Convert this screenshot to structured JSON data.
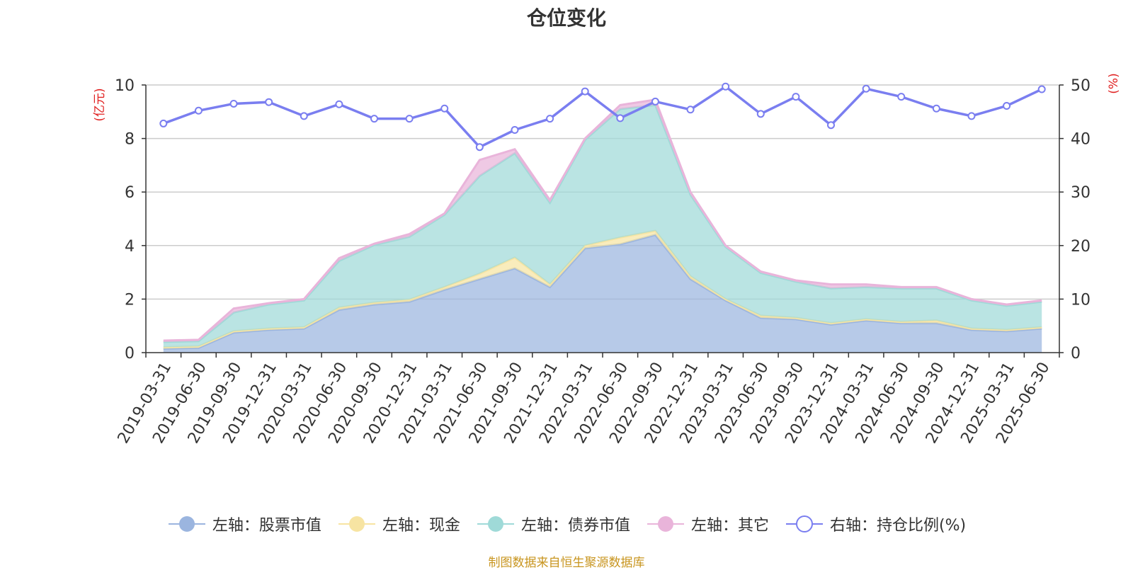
{
  "chart_data": {
    "type": "area",
    "title": "仓位变化",
    "x": [
      "2019-03-31",
      "2019-06-30",
      "2019-09-30",
      "2019-12-31",
      "2020-03-31",
      "2020-06-30",
      "2020-09-30",
      "2020-12-31",
      "2021-03-31",
      "2021-06-30",
      "2021-09-30",
      "2021-12-31",
      "2022-03-31",
      "2022-06-30",
      "2022-09-30",
      "2022-12-31",
      "2023-03-31",
      "2023-06-30",
      "2023-09-30",
      "2023-12-31",
      "2024-03-31",
      "2024-06-30",
      "2024-09-30",
      "2024-12-31",
      "2025-03-31",
      "2025-06-30"
    ],
    "y_left_label": "(亿元)",
    "y_right_label": "(%)",
    "y_left_ticks": [
      "0",
      "2",
      "4",
      "6",
      "8",
      "10"
    ],
    "y_right_ticks": [
      "0",
      "10",
      "20",
      "30",
      "40",
      "50"
    ],
    "y_left_range": [
      0,
      10
    ],
    "y_right_range": [
      0,
      50
    ],
    "grid": true,
    "legend_position": "bottom",
    "series": [
      {
        "name": "左轴：股票市值",
        "axis": "left",
        "kind": "stacked-area",
        "color": "#9bb5df",
        "values": [
          0.15,
          0.18,
          0.75,
          0.85,
          0.9,
          1.6,
          1.8,
          1.9,
          2.35,
          2.75,
          3.15,
          2.45,
          3.9,
          4.05,
          4.4,
          2.75,
          1.95,
          1.3,
          1.25,
          1.05,
          1.2,
          1.1,
          1.1,
          0.85,
          0.8,
          0.9
        ]
      },
      {
        "name": "左轴：现金",
        "axis": "left",
        "kind": "stacked-area",
        "color": "#f7e4a2",
        "values": [
          0.05,
          0.05,
          0.05,
          0.05,
          0.05,
          0.08,
          0.07,
          0.08,
          0.1,
          0.2,
          0.4,
          0.1,
          0.1,
          0.25,
          0.15,
          0.1,
          0.05,
          0.08,
          0.05,
          0.05,
          0.05,
          0.05,
          0.1,
          0.05,
          0.05,
          0.05
        ]
      },
      {
        "name": "左轴：债券市值",
        "axis": "left",
        "kind": "stacked-area",
        "color": "#9fdad8",
        "values": [
          0.2,
          0.2,
          0.7,
          0.9,
          1.0,
          1.75,
          2.15,
          2.35,
          2.7,
          3.65,
          3.9,
          3.05,
          3.95,
          4.8,
          4.7,
          3.05,
          1.95,
          1.6,
          1.35,
          1.3,
          1.2,
          1.25,
          1.2,
          1.05,
          0.9,
          0.95
        ]
      },
      {
        "name": "左轴：其它",
        "axis": "left",
        "kind": "stacked-area",
        "color": "#e9b4da",
        "values": [
          0.05,
          0.05,
          0.15,
          0.05,
          0.05,
          0.1,
          0.05,
          0.1,
          0.05,
          0.6,
          0.15,
          0.1,
          0.05,
          0.15,
          0.2,
          0.1,
          0.05,
          0.05,
          0.05,
          0.15,
          0.1,
          0.05,
          0.05,
          0.05,
          0.05,
          0.05
        ]
      },
      {
        "name": "右轴：持仓比例(%)",
        "axis": "right",
        "kind": "line",
        "color": "#7a7ef0",
        "values": [
          42.8,
          45.2,
          46.5,
          46.8,
          44.2,
          46.4,
          43.7,
          43.7,
          45.6,
          38.4,
          41.6,
          43.7,
          48.8,
          43.8,
          46.9,
          45.4,
          49.7,
          44.6,
          47.8,
          42.5,
          49.3,
          47.8,
          45.6,
          44.2,
          46.1,
          49.2
        ]
      }
    ]
  },
  "source_text": "制图数据来自恒生聚源数据库"
}
